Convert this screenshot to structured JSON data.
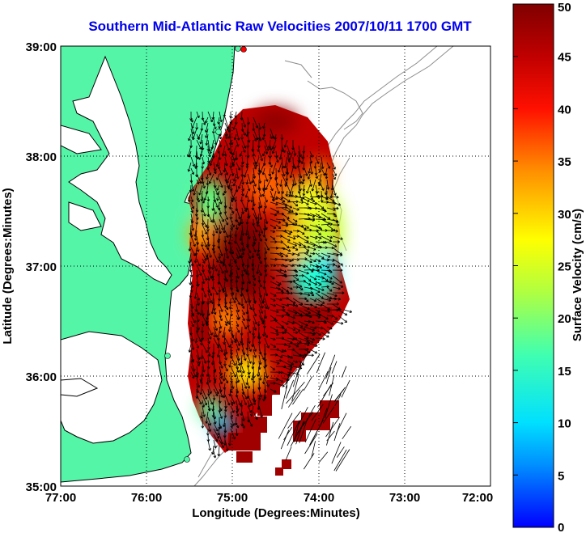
{
  "title": "Southern Mid-Atlantic Raw Velocities 2007/10/11 1700 GMT",
  "x_axis": {
    "label": "Longitude (Degrees:Minutes)",
    "ticks": [
      "77:00",
      "76:00",
      "75:00",
      "74:00",
      "73:00",
      "72:00"
    ]
  },
  "y_axis": {
    "label": "Latitude (Degrees:Minutes)",
    "ticks": [
      "39:00",
      "38:00",
      "37:00",
      "36:00",
      "35:00"
    ]
  },
  "colorbar": {
    "label": "Surface Velocity (cm/s)",
    "ticks": [
      "50",
      "45",
      "40",
      "35",
      "30",
      "25",
      "20",
      "15",
      "10",
      "5",
      "0"
    ],
    "min": 0,
    "max": 50
  },
  "colors": {
    "title": "#0000ee",
    "land": "#55f5a8",
    "water": "#ffffff",
    "coastline": "#000000",
    "bathymetry": "#8c8c8c",
    "gridline": "#000000"
  },
  "map": {
    "grid": "dotted",
    "lon_range": [
      -77,
      -72
    ],
    "lat_range": [
      35,
      39
    ],
    "icon": "current-vector-arrows"
  }
}
